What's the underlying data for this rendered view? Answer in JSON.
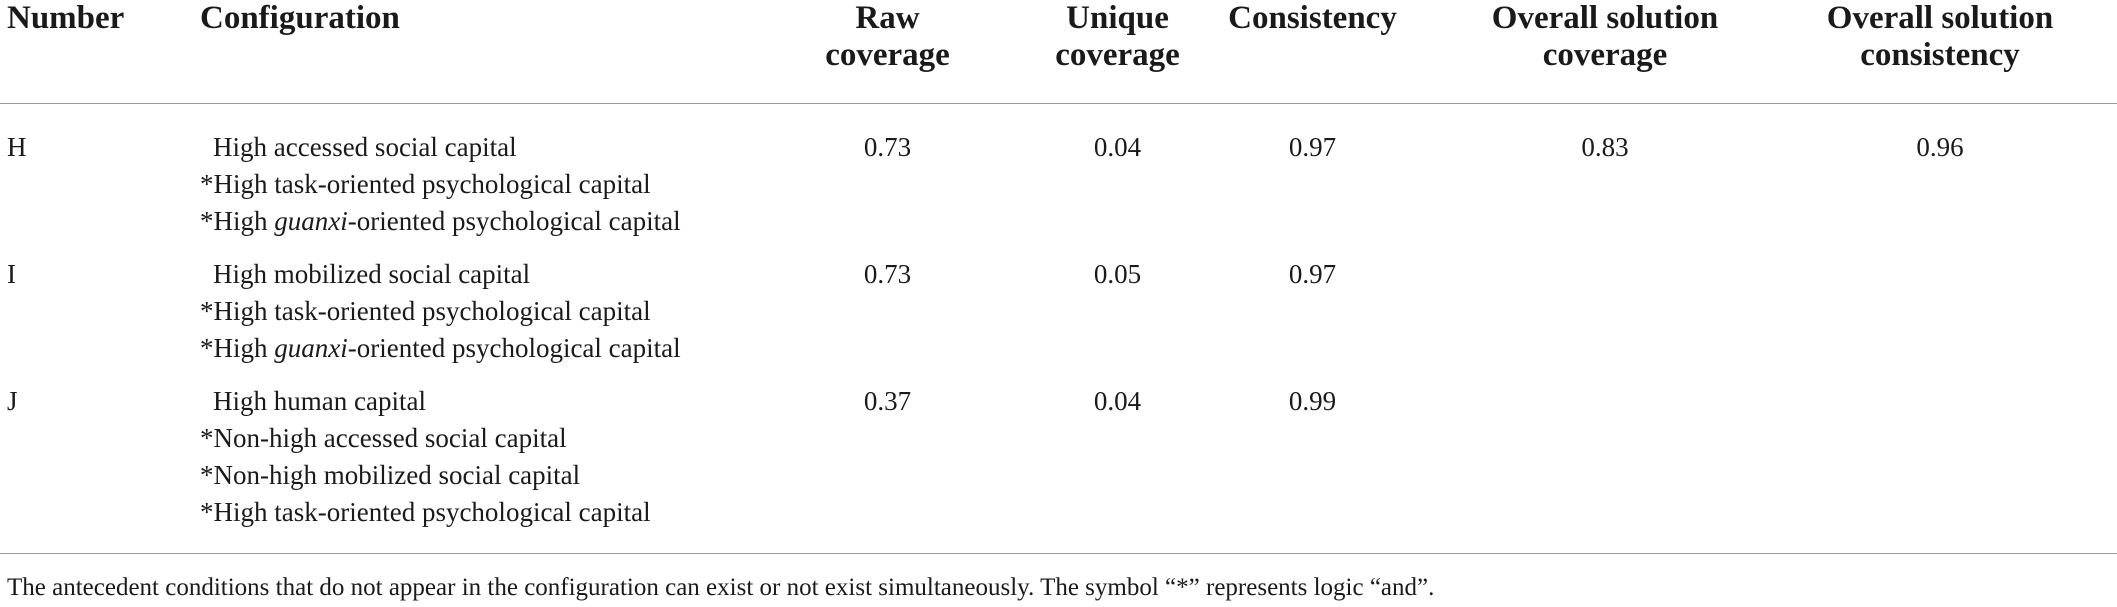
{
  "table": {
    "headers": {
      "number": "Number",
      "configuration": "Configuration",
      "raw_coverage": [
        "Raw",
        "coverage"
      ],
      "unique_coverage": [
        "Unique",
        "coverage"
      ],
      "consistency": "Consistency",
      "overall_solution_coverage": [
        "Overall solution",
        "coverage"
      ],
      "overall_solution_consistency": [
        "Overall solution",
        "consistency"
      ]
    },
    "rows": [
      {
        "number": "H",
        "configuration": [
          {
            "pre": "",
            "em": "",
            "post": "High accessed social capital"
          },
          {
            "pre": "*High task-oriented psychological capital",
            "em": "",
            "post": ""
          },
          {
            "pre": "*High ",
            "em": "guanxi",
            "post": "-oriented psychological capital"
          }
        ],
        "raw_coverage": "0.73",
        "unique_coverage": "0.04",
        "consistency": "0.97",
        "overall_solution_coverage": "0.83",
        "overall_solution_consistency": "0.96"
      },
      {
        "number": "I",
        "configuration": [
          {
            "pre": "",
            "em": "",
            "post": "High mobilized social capital"
          },
          {
            "pre": "*High task-oriented psychological capital",
            "em": "",
            "post": ""
          },
          {
            "pre": "*High ",
            "em": "guanxi",
            "post": "-oriented psychological capital"
          }
        ],
        "raw_coverage": "0.73",
        "unique_coverage": "0.05",
        "consistency": "0.97"
      },
      {
        "number": "J",
        "configuration": [
          {
            "pre": "",
            "em": "",
            "post": "High human capital"
          },
          {
            "pre": "*Non-high accessed social capital",
            "em": "",
            "post": ""
          },
          {
            "pre": "*Non-high mobilized social capital",
            "em": "",
            "post": ""
          },
          {
            "pre": "*High task-oriented psychological capital",
            "em": "",
            "post": ""
          }
        ],
        "raw_coverage": "0.37",
        "unique_coverage": "0.04",
        "consistency": "0.99"
      }
    ],
    "footnote": "The antecedent conditions that do not appear in the configuration can exist or not exist simultaneously. The symbol “*” represents logic “and”."
  }
}
